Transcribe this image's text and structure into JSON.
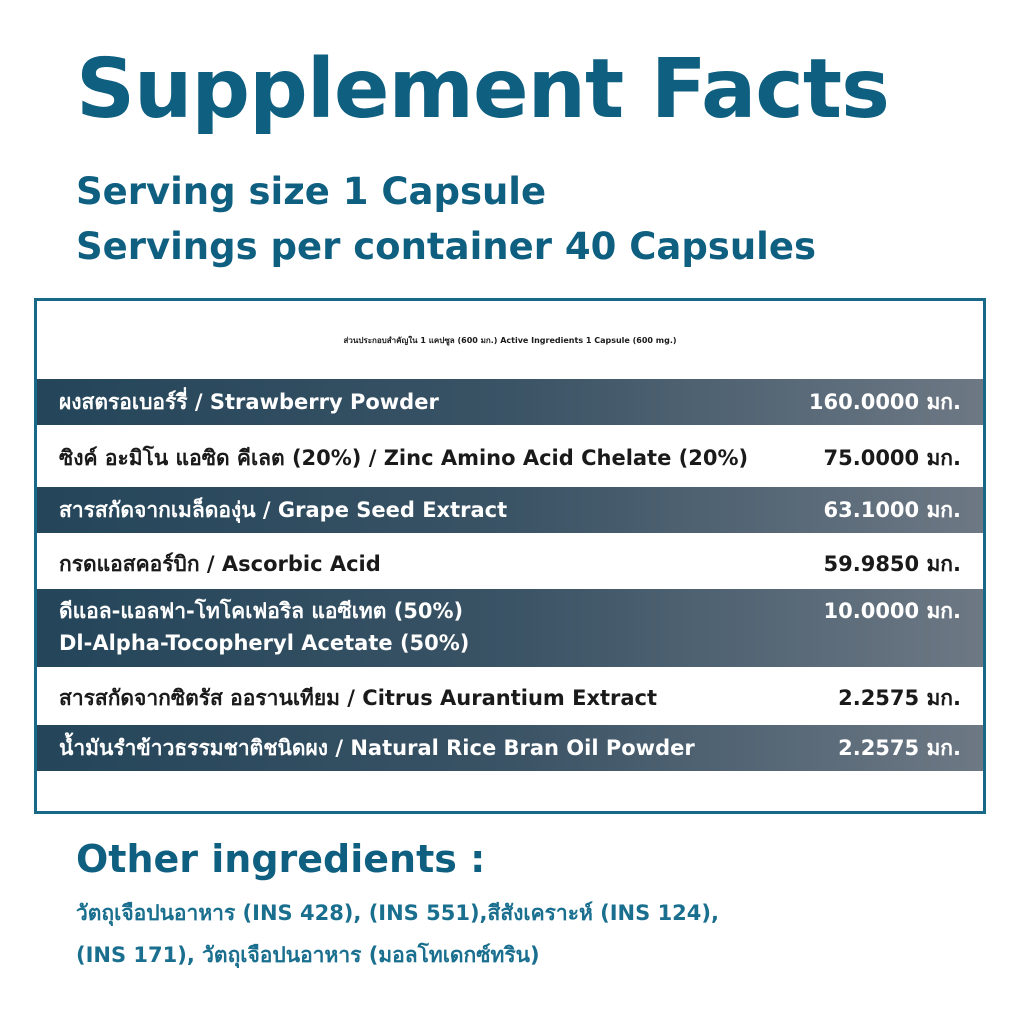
{
  "title": "Supplement Facts",
  "serving_size": "Serving size 1 Capsule",
  "servings_per_container": "Servings per container 40 Capsules",
  "panel": {
    "header": "ส่วนประกอบสำคัญใน 1 แคปซูล (600 มก.) Active Ingredients 1 Capsule (600 mg.)",
    "rows": [
      {
        "name": "ผงสตรอเบอร์รี่ / Strawberry Powder",
        "amount": "160.0000 มก."
      },
      {
        "name": "ซิงค์ อะมิโน แอซิด คีเลต (20%) / Zinc Amino Acid Chelate (20%)",
        "amount": "75.0000 มก."
      },
      {
        "name": "สารสกัดจากเมล็ดองุ่น / Grape Seed Extract",
        "amount": "63.1000 มก."
      },
      {
        "name": "กรดแอสคอร์บิก / Ascorbic Acid",
        "amount": "59.9850 มก."
      },
      {
        "name_line1": "ดีแอล-แอลฟา-โทโคเฟอริล แอซีเทต (50%)",
        "name_line2": "Dl-Alpha-Tocopheryl Acetate (50%)",
        "amount": "10.0000 มก."
      },
      {
        "name": "สารสกัดจากซิตรัส ออรานเทียม / Citrus Aurantium Extract",
        "amount": "2.2575 มก."
      },
      {
        "name": "น้ำมันรำข้าวธรรมชาติชนิดผง / Natural Rice Bran Oil Powder",
        "amount": "2.2575 มก."
      }
    ]
  },
  "other_ingredients": {
    "title": "Other ingredients :",
    "line1": "วัตถุเจือปนอาหาร (INS 428), (INS 551),สีสังเคราะห์ (INS 124),",
    "line2": "(INS 171), วัตถุเจือปนอาหาร (มอลโทเดกซ์ทริน)"
  },
  "colors": {
    "brand_teal": "#0e5f80",
    "dark_row": "#2e4a5c",
    "border": "#176987"
  }
}
